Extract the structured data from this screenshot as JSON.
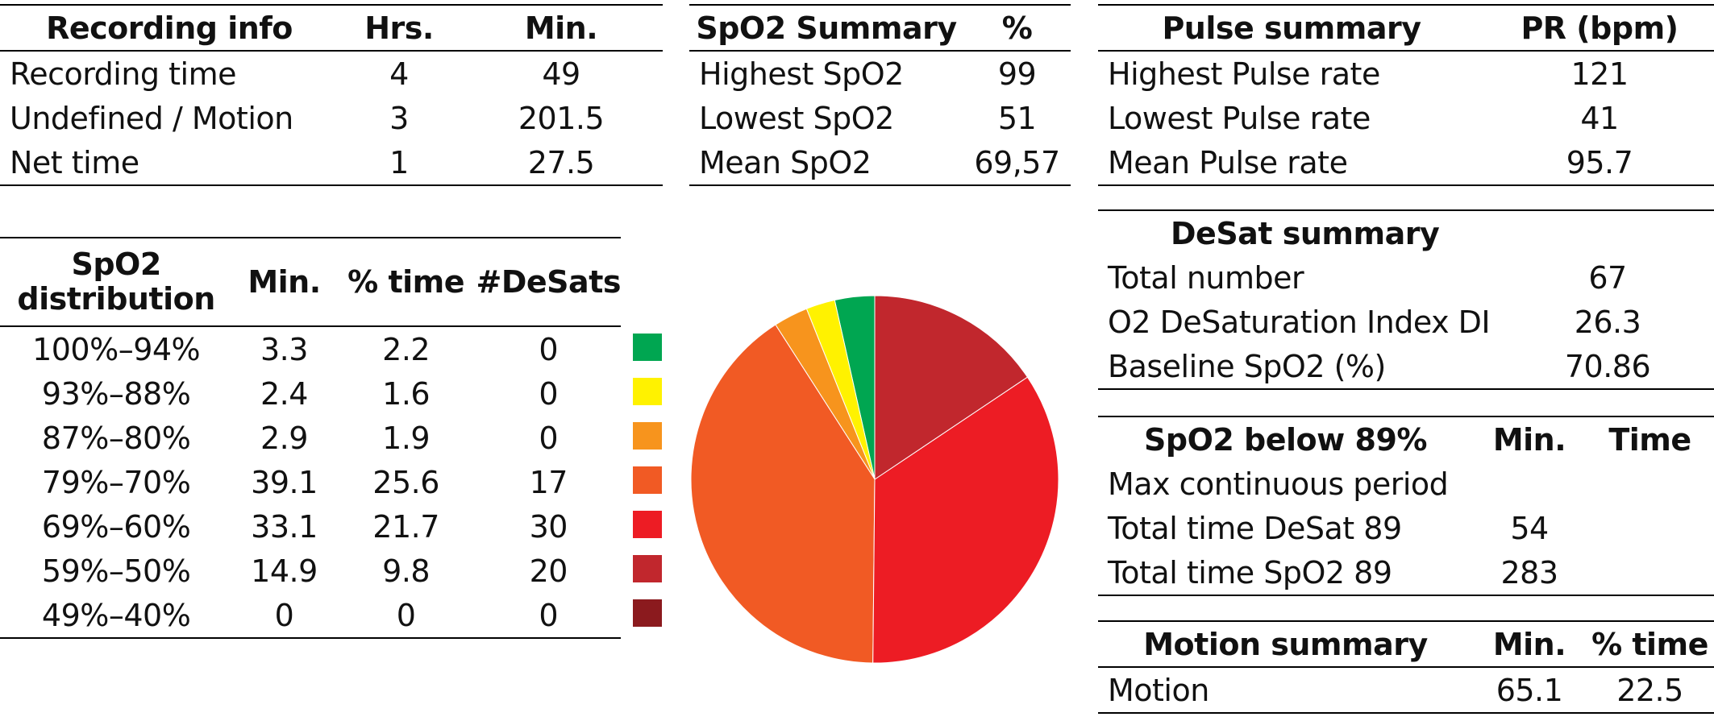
{
  "recording_info": {
    "headers": [
      "Recording info",
      "Hrs.",
      "Min."
    ],
    "rows": [
      [
        "Recording time",
        "4",
        "49"
      ],
      [
        "Undefined / Motion",
        "3",
        "201.5"
      ],
      [
        "Net time",
        "1",
        "27.5"
      ]
    ]
  },
  "spo2_summary": {
    "headers": [
      "SpO2 Summary",
      "%"
    ],
    "rows": [
      [
        "Highest SpO2",
        "99"
      ],
      [
        "Lowest SpO2",
        "51"
      ],
      [
        "Mean SpO2",
        "69,57"
      ]
    ]
  },
  "pulse_summary": {
    "headers": [
      "Pulse summary",
      "PR (bpm)"
    ],
    "rows": [
      [
        "Highest Pulse rate",
        "121"
      ],
      [
        "Lowest Pulse rate",
        "41"
      ],
      [
        "Mean Pulse rate",
        "95.7"
      ]
    ]
  },
  "desat_summary": {
    "title": "DeSat summary",
    "rows": [
      [
        "Total number",
        "67"
      ],
      [
        "O2 DeSaturation Index DI",
        "26.3"
      ],
      [
        "Baseline SpO2 (%)",
        "70.86"
      ]
    ]
  },
  "spo2_below_89": {
    "headers": [
      "SpO2 below 89%",
      "Min.",
      "Time"
    ],
    "rows": [
      [
        "Max continuous period",
        "",
        ""
      ],
      [
        "Total time DeSat 89",
        "54",
        ""
      ],
      [
        "Total time SpO2 89",
        "283",
        ""
      ]
    ]
  },
  "motion_summary": {
    "headers": [
      "Motion summary",
      "Min.",
      "% time"
    ],
    "rows": [
      [
        "Motion",
        "65.1",
        "22.5"
      ]
    ]
  },
  "spo2_distribution": {
    "header_line1": "SpO2",
    "header_line2": "distribution",
    "headers": [
      "Min.",
      "% time",
      "#DeSats"
    ],
    "rows": [
      [
        "100%–94%",
        "3.3",
        "2.2",
        "0"
      ],
      [
        "93%–88%",
        "2.4",
        "1.6",
        "0"
      ],
      [
        "87%–80%",
        "2.9",
        "1.9",
        "0"
      ],
      [
        "79%–70%",
        "39.1",
        "25.6",
        "17"
      ],
      [
        "69%–60%",
        "33.1",
        "21.7",
        "30"
      ],
      [
        "59%–50%",
        "14.9",
        "9.8",
        "20"
      ],
      [
        "49%–40%",
        "0",
        "0",
        "0"
      ]
    ],
    "colors": [
      "#00a651",
      "#fff200",
      "#f7941d",
      "#f15a24",
      "#ed1c24",
      "#c1272d",
      "#8b1a1e"
    ]
  },
  "chart_data": {
    "type": "pie",
    "title": "",
    "categories": [
      "100%–94%",
      "93%–88%",
      "87%–80%",
      "79%–70%",
      "69%–60%",
      "59%–50%",
      "49%–40%"
    ],
    "values": [
      2.2,
      1.6,
      1.9,
      25.6,
      21.7,
      9.8,
      0
    ],
    "colors": [
      "#00a651",
      "#fff200",
      "#f7941d",
      "#f15a24",
      "#ed1c24",
      "#c1272d",
      "#8b1a1e"
    ],
    "start": "top",
    "direction": "counterclockwise"
  }
}
